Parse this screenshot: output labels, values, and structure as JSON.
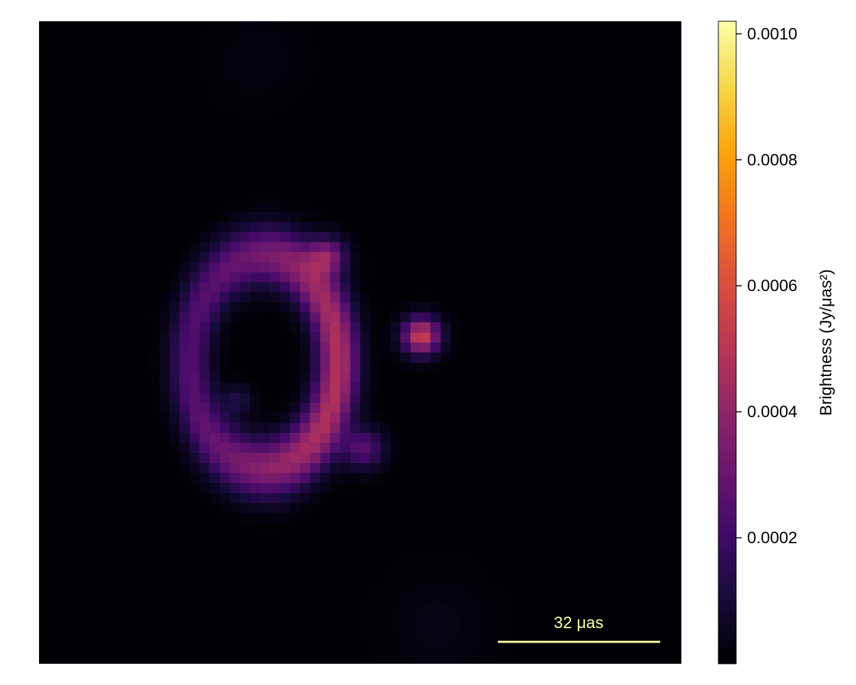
{
  "chart_data": {
    "type": "heatmap",
    "colormap": "inferno",
    "colorbar": {
      "label": "Brightness (Jy/μas²)",
      "range": [
        0.0,
        0.00102
      ],
      "ticks": [
        0.0002,
        0.0004,
        0.0006,
        0.0008,
        0.001
      ],
      "tick_labels": [
        "0.0002",
        "0.0004",
        "0.0006",
        "0.0008",
        "0.0010"
      ]
    },
    "image": {
      "grid": 64,
      "description_components": [
        {
          "kind": "ring",
          "cx": 0.35,
          "cy": 0.53,
          "rx": 0.115,
          "ry": 0.165,
          "width": 0.045,
          "amplitude": 0.00048
        },
        {
          "kind": "spot",
          "x": 0.595,
          "y": 0.49,
          "sigma": 0.02,
          "amplitude": 0.00055
        },
        {
          "kind": "spot",
          "x": 0.45,
          "y": 0.365,
          "sigma": 0.02,
          "amplitude": 0.00032
        },
        {
          "kind": "spot",
          "x": 0.505,
          "y": 0.665,
          "sigma": 0.022,
          "amplitude": 0.00025
        },
        {
          "kind": "spot",
          "x": 0.31,
          "y": 0.59,
          "sigma": 0.016,
          "amplitude": 0.00012
        },
        {
          "kind": "haze",
          "x": 0.34,
          "y": 0.06,
          "sigma": 0.05,
          "amplitude": 2.5e-05
        },
        {
          "kind": "haze",
          "x": 0.62,
          "y": 0.94,
          "sigma": 0.06,
          "amplitude": 3e-05
        }
      ],
      "peak": 0.00102
    },
    "scale_bar": {
      "label": "32 μas",
      "color": "#fcffa4"
    }
  }
}
